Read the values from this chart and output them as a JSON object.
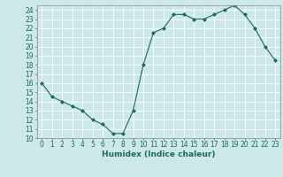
{
  "x": [
    0,
    1,
    2,
    3,
    4,
    5,
    6,
    7,
    8,
    9,
    10,
    11,
    12,
    13,
    14,
    15,
    16,
    17,
    18,
    19,
    20,
    21,
    22,
    23
  ],
  "y": [
    16,
    14.5,
    14,
    13.5,
    13,
    12,
    11.5,
    10.5,
    10.5,
    13,
    18,
    21.5,
    22,
    23.5,
    23.5,
    23,
    23,
    23.5,
    24,
    24.5,
    23.5,
    22,
    20,
    18.5
  ],
  "line_color": "#1a6b5a",
  "marker": "D",
  "marker_size": 2,
  "bg_color": "#cce8e8",
  "grid_color": "#ffffff",
  "xlabel": "Humidex (Indice chaleur)",
  "xlim": [
    -0.5,
    23.5
  ],
  "ylim": [
    10,
    24.5
  ],
  "yticks": [
    10,
    11,
    12,
    13,
    14,
    15,
    16,
    17,
    18,
    19,
    20,
    21,
    22,
    23,
    24
  ],
  "xticks": [
    0,
    1,
    2,
    3,
    4,
    5,
    6,
    7,
    8,
    9,
    10,
    11,
    12,
    13,
    14,
    15,
    16,
    17,
    18,
    19,
    20,
    21,
    22,
    23
  ],
  "label_fontsize": 6.5,
  "tick_fontsize": 5.5
}
